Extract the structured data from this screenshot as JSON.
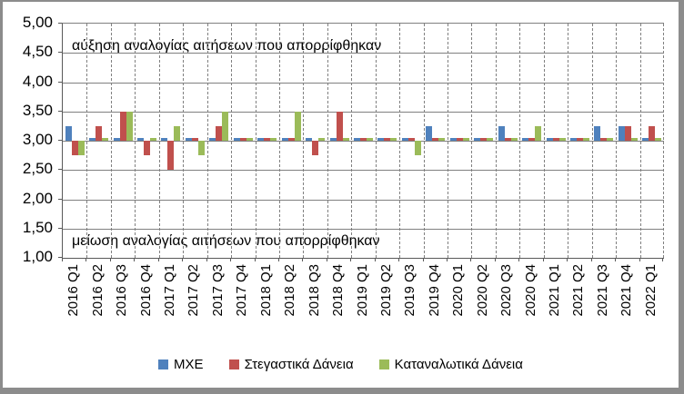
{
  "chart_data": {
    "type": "bar",
    "title": "",
    "xlabel": "",
    "ylabel": "",
    "grid": true,
    "legend_position": "bottom",
    "baseline": 3.0,
    "ylim": [
      1.0,
      5.0
    ],
    "ytick_step": 0.5,
    "ytick_labels": [
      "5,00",
      "4,50",
      "4,00",
      "3,50",
      "3,00",
      "2,50",
      "2,00",
      "1,50",
      "1,00"
    ],
    "categories": [
      "2016 Q1",
      "2016 Q2",
      "2016 Q3",
      "2016 Q4",
      "2017 Q1",
      "2017 Q2",
      "2017 Q3",
      "2017 Q4",
      "2018 Q1",
      "2018 Q2",
      "2018 Q3",
      "2018 Q4",
      "2019 Q1",
      "2019 Q2",
      "2019 Q3",
      "2019 Q4",
      "2020 Q1",
      "2020 Q2",
      "2020 Q3",
      "2020 Q4",
      "2021 Q1",
      "2021 Q2",
      "2021 Q3",
      "2021 Q4",
      "2022 Q1"
    ],
    "series": [
      {
        "name": "ΜΧΕ",
        "color": "#4F81BD",
        "values": [
          3.25,
          3.05,
          3.05,
          3.05,
          3.05,
          3.05,
          3.05,
          3.05,
          3.05,
          3.05,
          3.05,
          3.05,
          3.05,
          3.05,
          3.05,
          3.25,
          3.05,
          3.05,
          3.25,
          3.05,
          3.05,
          3.05,
          3.25,
          3.25,
          3.05
        ]
      },
      {
        "name": "Στεγαστικά Δάνεια",
        "color": "#C0504D",
        "values": [
          2.75,
          3.25,
          3.5,
          2.75,
          2.5,
          3.05,
          3.25,
          3.05,
          3.05,
          3.05,
          2.75,
          3.5,
          3.05,
          3.05,
          3.05,
          3.05,
          3.05,
          3.05,
          3.05,
          3.05,
          3.05,
          3.05,
          3.05,
          3.25,
          3.25
        ]
      },
      {
        "name": "Καταναλωτικά Δάνεια",
        "color": "#9BBB59",
        "values": [
          2.75,
          3.05,
          3.5,
          3.05,
          3.25,
          2.75,
          3.5,
          3.05,
          3.05,
          3.5,
          3.05,
          3.05,
          3.05,
          3.05,
          2.75,
          3.05,
          3.05,
          3.05,
          3.05,
          3.25,
          3.05,
          3.05,
          3.05,
          3.05,
          3.05
        ]
      }
    ],
    "annotations": {
      "top": "αύξηση αναλογίας αιτήσεων που απορρίφθηκαν",
      "bottom": "μείωση αναλογίας αιτήσεων που απορρίφθηκαν"
    }
  },
  "colors": {
    "grid": "#808080",
    "axis": "#595959",
    "frame": "#8C8C8C",
    "text": "#000000",
    "background": "#FFFFFF"
  }
}
